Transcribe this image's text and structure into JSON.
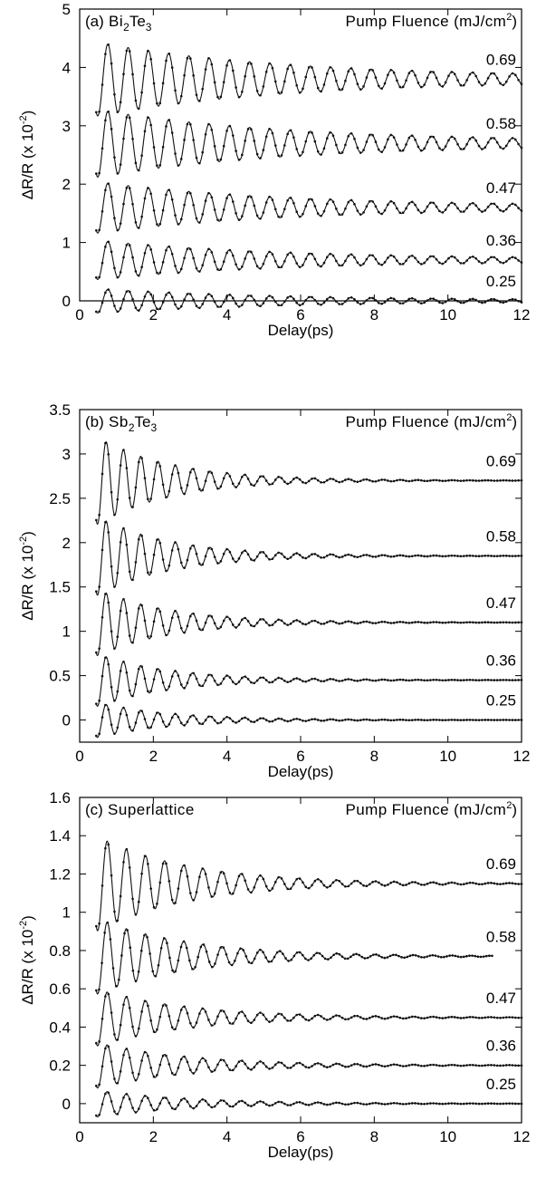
{
  "chart_data": [
    {
      "type": "line",
      "panel_label": "(a)",
      "material": "Bi",
      "material_sub1": "2",
      "material_mid": "Te",
      "material_sub2": "3",
      "legend_title": "Pump Fluence (mJ/cm",
      "legend_sup": "2",
      "legend_close": ")",
      "xlabel": "Delay(ps)",
      "ylabel": "ΔR/R (x 10",
      "ylabel_sup": "-2",
      "ylabel_close": ")",
      "xlim": [
        0,
        12
      ],
      "ylim": [
        0,
        5
      ],
      "xticks": [
        "0",
        "2",
        "4",
        "6",
        "8",
        "10",
        "12"
      ],
      "xtick_values": [
        0,
        2,
        4,
        6,
        8,
        10,
        12
      ],
      "yticks": [
        "0",
        "1",
        "2",
        "3",
        "4",
        "5"
      ],
      "ytick_values": [
        0,
        1,
        2,
        3,
        4,
        5
      ],
      "x_start": 0.45,
      "x_end": 12,
      "period_ps": 0.55,
      "series": [
        {
          "name": "0.25",
          "offset": 0.0,
          "amplitude": 0.2,
          "decay_ps": 5.0,
          "floor": 0.04
        },
        {
          "name": "0.36",
          "offset": 0.7,
          "amplitude": 0.32,
          "decay_ps": 5.0,
          "floor": 0.05
        },
        {
          "name": "0.47",
          "offset": 1.6,
          "amplitude": 0.42,
          "decay_ps": 5.0,
          "floor": 0.05
        },
        {
          "name": "0.58",
          "offset": 2.7,
          "amplitude": 0.55,
          "decay_ps": 5.0,
          "floor": 0.06
        },
        {
          "name": "0.69",
          "offset": 3.8,
          "amplitude": 0.6,
          "decay_ps": 5.0,
          "floor": 0.06
        }
      ]
    },
    {
      "type": "line",
      "panel_label": "(b)",
      "material": "Sb",
      "material_sub1": "2",
      "material_mid": "Te",
      "material_sub2": "3",
      "legend_title": "Pump Fluence (mJ/cm",
      "legend_sup": "2",
      "legend_close": ")",
      "xlabel": "Delay(ps)",
      "ylabel": "ΔR/R (x 10",
      "ylabel_sup": "-2",
      "ylabel_close": ")",
      "xlim": [
        0,
        12
      ],
      "ylim": [
        -0.25,
        3.5
      ],
      "xticks": [
        "0",
        "2",
        "4",
        "6",
        "8",
        "10",
        "12"
      ],
      "xtick_values": [
        0,
        2,
        4,
        6,
        8,
        10,
        12
      ],
      "yticks": [
        "0",
        "0.5",
        "1",
        "1.5",
        "2",
        "2.5",
        "3",
        "3.5"
      ],
      "ytick_values": [
        0,
        0.5,
        1,
        1.5,
        2,
        2.5,
        3,
        3.5
      ],
      "x_start": 0.45,
      "x_end": 12,
      "period_ps": 0.47,
      "series": [
        {
          "name": "0.25",
          "offset": 0.0,
          "amplitude": 0.2,
          "decay_ps": 2.0,
          "floor": 0.0
        },
        {
          "name": "0.36",
          "offset": 0.45,
          "amplitude": 0.3,
          "decay_ps": 2.0,
          "floor": 0.0
        },
        {
          "name": "0.47",
          "offset": 1.1,
          "amplitude": 0.38,
          "decay_ps": 2.0,
          "floor": 0.0
        },
        {
          "name": "0.58",
          "offset": 1.85,
          "amplitude": 0.45,
          "decay_ps": 2.0,
          "floor": 0.0
        },
        {
          "name": "0.69",
          "offset": 2.7,
          "amplitude": 0.5,
          "decay_ps": 2.0,
          "floor": 0.0
        }
      ]
    },
    {
      "type": "line",
      "panel_label": "(c)",
      "material": "Superlattice",
      "material_sub1": "",
      "material_mid": "",
      "material_sub2": "",
      "legend_title": "Pump Fluence (mJ/cm",
      "legend_sup": "2",
      "legend_close": ")",
      "xlabel": "Delay(ps)",
      "ylabel": "ΔR/R (x 10",
      "ylabel_sup": "-2",
      "ylabel_close": ")",
      "xlim": [
        0,
        12
      ],
      "ylim": [
        -0.1,
        1.6
      ],
      "xticks": [
        "0",
        "2",
        "4",
        "6",
        "8",
        "10",
        "12"
      ],
      "xtick_values": [
        0,
        2,
        4,
        6,
        8,
        10,
        12
      ],
      "yticks": [
        "0",
        "0.2",
        "0.4",
        "0.6",
        "0.8",
        "1",
        "1.2",
        "1.4",
        "1.6"
      ],
      "ytick_values": [
        0,
        0.2,
        0.4,
        0.6,
        0.8,
        1,
        1.2,
        1.4,
        1.6
      ],
      "x_start": 0.45,
      "x_end": 12,
      "period_ps": 0.52,
      "series": [
        {
          "name": "0.25",
          "offset": 0.0,
          "amplitude": 0.07,
          "decay_ps": 2.5,
          "floor": 0.0
        },
        {
          "name": "0.36",
          "offset": 0.2,
          "amplitude": 0.12,
          "decay_ps": 2.5,
          "floor": 0.0
        },
        {
          "name": "0.47",
          "offset": 0.45,
          "amplitude": 0.15,
          "decay_ps": 2.5,
          "floor": 0.0
        },
        {
          "name": "0.58",
          "offset": 0.77,
          "amplitude": 0.2,
          "decay_ps": 2.5,
          "floor": 0.0,
          "x_end": 11.2
        },
        {
          "name": "0.69",
          "offset": 1.15,
          "amplitude": 0.25,
          "decay_ps": 2.5,
          "floor": 0.0
        }
      ]
    }
  ]
}
